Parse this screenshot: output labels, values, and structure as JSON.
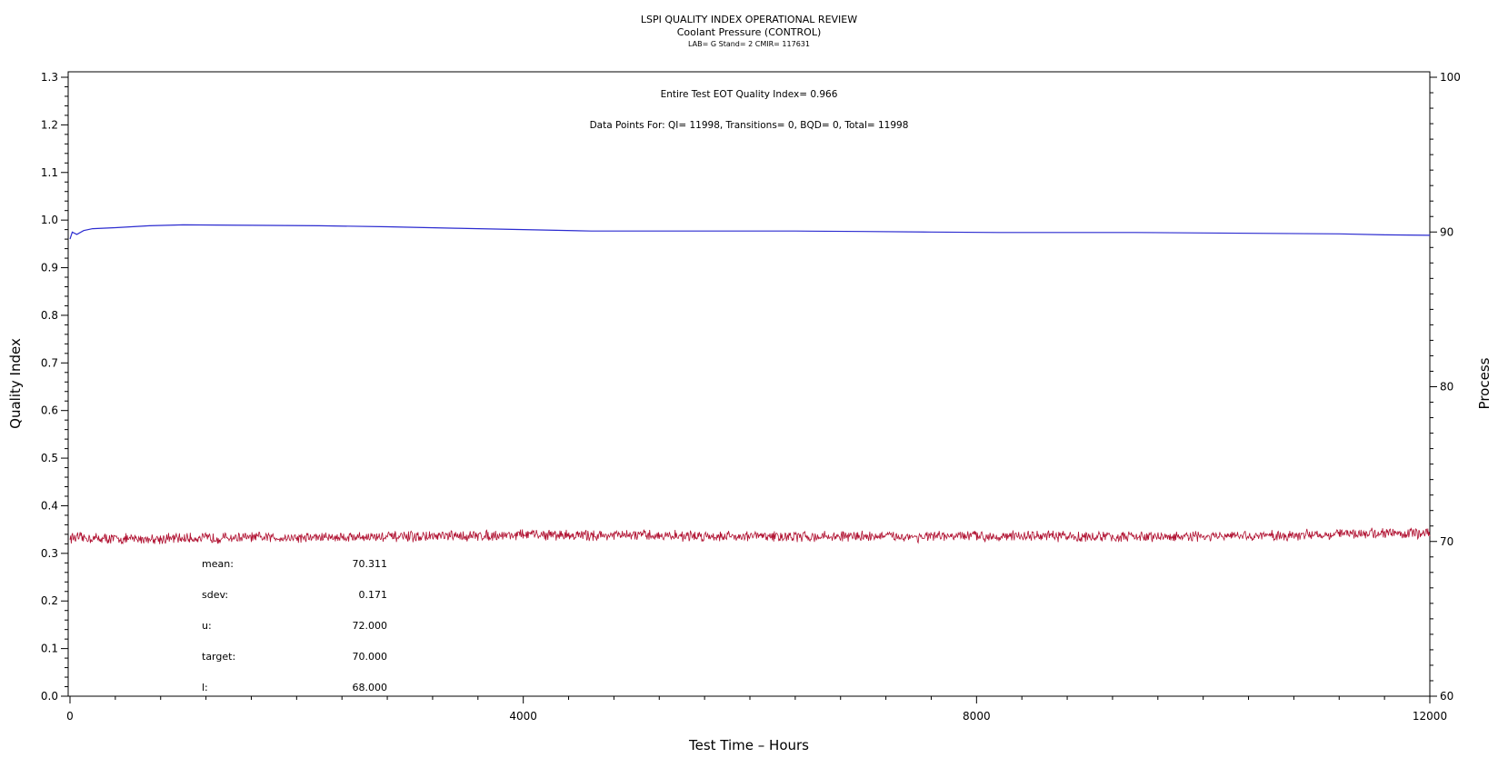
{
  "chart_data": {
    "type": "line",
    "title": "LSPI QUALITY INDEX OPERATIONAL REVIEW",
    "subtitle": "Coolant Pressure (CONTROL)",
    "subtitle2": "LAB= G Stand= 2 CMIR= 117631",
    "xlabel": "Test Time – Hours",
    "ylabel_left": "Quality Index",
    "ylabel_right": "Process",
    "xlim": [
      0,
      12000
    ],
    "ylim_left": [
      0.0,
      1.3
    ],
    "ylim_right": [
      60,
      100
    ],
    "x_ticks": [
      "0",
      "4000",
      "8000",
      "12000"
    ],
    "y_left_ticks": [
      "0.0",
      "0.1",
      "0.2",
      "0.3",
      "0.4",
      "0.5",
      "0.6",
      "0.7",
      "0.8",
      "0.9",
      "1.0",
      "1.1",
      "1.2",
      "1.3"
    ],
    "y_right_ticks": [
      "60",
      "70",
      "80",
      "90",
      "100"
    ],
    "annotations": {
      "eot": "Entire Test EOT Quality Index=   0.966",
      "points": "Data Points For: QI= 11998, Transitions=      0, BQD=      0, Total= 11998"
    },
    "stats": [
      {
        "label": "mean:",
        "value": "70.311"
      },
      {
        "label": "sdev:",
        "value": "0.171"
      },
      {
        "label": "u:",
        "value": "72.000"
      },
      {
        "label": "target:",
        "value": "70.000"
      },
      {
        "label": "l:",
        "value": "68.000"
      }
    ],
    "series": [
      {
        "axis": "left",
        "color": "#2b2bd0",
        "x": [
          0,
          20,
          60,
          120,
          200,
          400,
          700,
          1000,
          1600,
          2200,
          2800,
          3400,
          4000,
          4600,
          5200,
          5800,
          6400,
          7000,
          7600,
          8200,
          8800,
          9400,
          10000,
          10600,
          11200,
          11600,
          12000
        ],
        "y": [
          0.96,
          0.975,
          0.97,
          0.978,
          0.982,
          0.984,
          0.988,
          0.99,
          0.989,
          0.988,
          0.986,
          0.983,
          0.98,
          0.977,
          0.977,
          0.977,
          0.977,
          0.976,
          0.975,
          0.974,
          0.974,
          0.974,
          0.973,
          0.972,
          0.971,
          0.969,
          0.968
        ]
      },
      {
        "axis": "right",
        "color": "#b01030",
        "x": [
          0,
          500,
          1000,
          1500,
          2000,
          2500,
          3000,
          3500,
          4000,
          4500,
          5000,
          5500,
          6000,
          6500,
          7000,
          7500,
          8000,
          8500,
          9000,
          9500,
          10000,
          10500,
          11000,
          11500,
          12000
        ],
        "y": [
          70.25,
          70.15,
          70.2,
          70.25,
          70.25,
          70.3,
          70.3,
          70.35,
          70.45,
          70.4,
          70.4,
          70.35,
          70.35,
          70.3,
          70.35,
          70.3,
          70.35,
          70.35,
          70.3,
          70.3,
          70.3,
          70.35,
          70.45,
          70.55,
          70.5
        ]
      }
    ]
  }
}
